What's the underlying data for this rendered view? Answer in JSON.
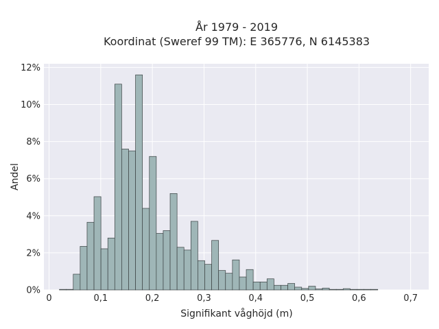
{
  "chart_data": {
    "type": "bar",
    "title": "År 1979 - 2019",
    "subtitle": "Koordinat (Sweref 99 TM): E 365776, N 6145383",
    "xlabel": "Signifikant våghöjd (m)",
    "ylabel": "Andel",
    "xlim": [
      -0.01,
      0.735
    ],
    "ylim": [
      0,
      0.122
    ],
    "bin_width": 0.0134,
    "bin_start": 0.02,
    "x_ticks": [
      0,
      0.1,
      0.2,
      0.3,
      0.4,
      0.5,
      0.6,
      0.7
    ],
    "x_tick_labels": [
      "0",
      "0,1",
      "0,2",
      "0,3",
      "0,4",
      "0,5",
      "0,6",
      "0,7"
    ],
    "y_ticks": [
      0,
      0.02,
      0.04,
      0.06,
      0.08,
      0.1,
      0.12
    ],
    "y_tick_labels": [
      "0%",
      "2%",
      "4%",
      "6%",
      "8%",
      "10%",
      "12%"
    ],
    "grid": true,
    "values": [
      0.0003,
      0.0003,
      0.0085,
      0.0235,
      0.0365,
      0.0503,
      0.0222,
      0.028,
      0.111,
      0.076,
      0.075,
      0.116,
      0.044,
      0.072,
      0.0305,
      0.032,
      0.052,
      0.023,
      0.0215,
      0.037,
      0.0158,
      0.0138,
      0.0267,
      0.0105,
      0.009,
      0.0162,
      0.007,
      0.011,
      0.0043,
      0.0043,
      0.006,
      0.0025,
      0.0025,
      0.0035,
      0.0015,
      0.0008,
      0.002,
      0.0005,
      0.001,
      0.0003,
      0.0003,
      0.0007,
      0.0003,
      0.0003,
      0.0003,
      0.0003
    ],
    "bar_color": "#9fb6b7",
    "edge_color": "#3a4142",
    "background_color": "#eaeaf2",
    "grid_color": "#ffffff"
  }
}
